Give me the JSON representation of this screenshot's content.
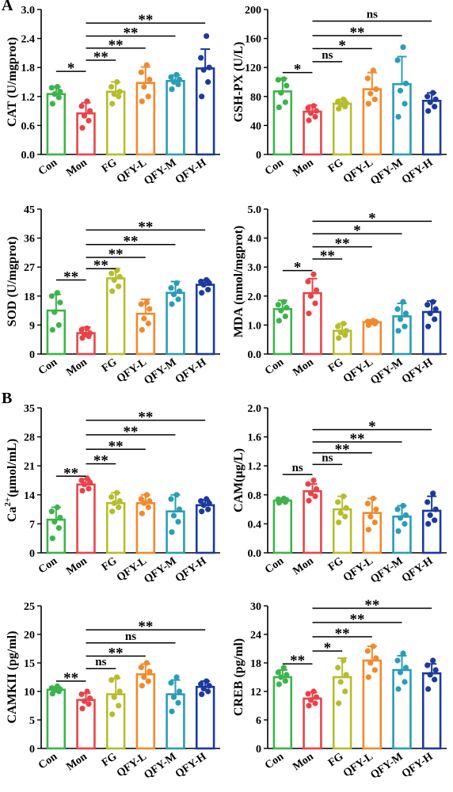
{
  "panel_labels": [
    "A",
    "B"
  ],
  "colors": [
    "#3cb44b",
    "#e8434a",
    "#b5bd2a",
    "#f08a2c",
    "#2a9db6",
    "#1a3a9c"
  ],
  "chart_data": [
    {
      "type": "bar",
      "ylabel": "CAT (U/mgprot)",
      "ylim": [
        0,
        3.0
      ],
      "yticks": [
        "0.0",
        "0.6",
        "1.2",
        "1.8",
        "2.4",
        "3.0"
      ],
      "categories": [
        "Con",
        "Mon",
        "FG",
        "QFY-L",
        "QFY-M",
        "QFY-H"
      ],
      "values": [
        1.25,
        0.85,
        1.3,
        1.48,
        1.52,
        1.78
      ],
      "errors": [
        0.15,
        0.22,
        0.2,
        0.33,
        0.12,
        0.4
      ],
      "points": [
        [
          1.05,
          1.18,
          1.25,
          1.3,
          1.38,
          1.4
        ],
        [
          0.55,
          0.7,
          0.8,
          0.9,
          1.0,
          1.1
        ],
        [
          1.05,
          1.2,
          1.25,
          1.3,
          1.4,
          1.5
        ],
        [
          1.1,
          1.2,
          1.4,
          1.55,
          1.7,
          1.85
        ],
        [
          1.35,
          1.45,
          1.5,
          1.55,
          1.6,
          1.65
        ],
        [
          1.2,
          1.5,
          1.75,
          1.8,
          2.0,
          2.45
        ]
      ],
      "comparisons": [
        {
          "from": 0,
          "to": 1,
          "label": "*",
          "level": 1.72
        },
        {
          "from": 1,
          "to": 2,
          "label": "**",
          "level": 1.95
        },
        {
          "from": 1,
          "to": 3,
          "label": "**",
          "level": 2.2
        },
        {
          "from": 1,
          "to": 4,
          "label": "**",
          "level": 2.45
        },
        {
          "from": 1,
          "to": 5,
          "label": "**",
          "level": 2.72
        }
      ]
    },
    {
      "type": "bar",
      "ylabel": "GSH-PX (U/L)",
      "ylim": [
        0,
        200
      ],
      "yticks": [
        "0",
        "40",
        "80",
        "120",
        "160",
        "200"
      ],
      "categories": [
        "Con",
        "Mon",
        "FG",
        "QFY-L",
        "QFY-M",
        "QFY-H"
      ],
      "values": [
        87,
        59,
        70,
        90,
        97,
        74
      ],
      "errors": [
        18,
        9,
        6,
        23,
        38,
        11
      ],
      "points": [
        [
          65,
          72,
          85,
          95,
          103,
          104
        ],
        [
          47,
          52,
          57,
          60,
          64,
          67
        ],
        [
          63,
          66,
          69,
          71,
          73,
          76
        ],
        [
          70,
          76,
          84,
          90,
          105,
          116
        ],
        [
          52,
          70,
          88,
          98,
          130,
          148
        ],
        [
          60,
          66,
          72,
          76,
          80,
          85
        ]
      ],
      "comparisons": [
        {
          "from": 0,
          "to": 1,
          "label": "*",
          "level": 113
        },
        {
          "from": 1,
          "to": 2,
          "label": "ns",
          "level": 128
        },
        {
          "from": 1,
          "to": 3,
          "label": "*",
          "level": 146
        },
        {
          "from": 1,
          "to": 4,
          "label": "**",
          "level": 164
        },
        {
          "from": 1,
          "to": 5,
          "label": "ns",
          "level": 184
        }
      ]
    },
    {
      "type": "bar",
      "ylabel": "SOD (U/mgprot)",
      "ylim": [
        0,
        45
      ],
      "yticks": [
        "0",
        "9",
        "18",
        "27",
        "36",
        "45"
      ],
      "categories": [
        "Con",
        "Mon",
        "FG",
        "QFY-L",
        "QFY-M",
        "QFY-H"
      ],
      "values": [
        13.5,
        6.5,
        23.5,
        12.5,
        19,
        21.5
      ],
      "errors": [
        5,
        1.8,
        3,
        4.5,
        3.5,
        1.5
      ],
      "points": [
        [
          7.5,
          9,
          13,
          16,
          18,
          19
        ],
        [
          5,
          5.5,
          6,
          6.5,
          7.5,
          8
        ],
        [
          19.5,
          21,
          23,
          24,
          25,
          26
        ],
        [
          7.5,
          9.5,
          11,
          14,
          15.5,
          16
        ],
        [
          15.5,
          17,
          18.5,
          19.5,
          20.5,
          22
        ],
        [
          19,
          20,
          21.5,
          22,
          22.5,
          23
        ]
      ],
      "comparisons": [
        {
          "from": 0,
          "to": 1,
          "label": "**",
          "level": 23
        },
        {
          "from": 1,
          "to": 2,
          "label": "**",
          "level": 26.5
        },
        {
          "from": 1,
          "to": 3,
          "label": "**",
          "level": 30
        },
        {
          "from": 1,
          "to": 4,
          "label": "**",
          "level": 34
        },
        {
          "from": 1,
          "to": 5,
          "label": "**",
          "level": 38.5
        }
      ]
    },
    {
      "type": "bar",
      "ylabel": "MDA (nmol/mgprot)",
      "ylim": [
        0,
        5.0
      ],
      "yticks": [
        "0.0",
        "1.0",
        "2.0",
        "3.0",
        "4.0",
        "5.0"
      ],
      "categories": [
        "Con",
        "Mon",
        "FG",
        "QFY-L",
        "QFY-M",
        "QFY-H"
      ],
      "values": [
        1.55,
        2.1,
        0.8,
        1.1,
        1.3,
        1.45
      ],
      "errors": [
        0.3,
        0.5,
        0.25,
        0.08,
        0.45,
        0.38
      ],
      "points": [
        [
          1.15,
          1.3,
          1.5,
          1.6,
          1.7,
          1.8
        ],
        [
          1.4,
          1.75,
          2.0,
          2.2,
          2.5,
          2.75
        ],
        [
          0.55,
          0.65,
          0.75,
          0.8,
          0.95,
          1.05
        ],
        [
          1.0,
          1.05,
          1.08,
          1.1,
          1.12,
          1.15
        ],
        [
          0.8,
          0.95,
          1.2,
          1.4,
          1.55,
          1.8
        ],
        [
          0.95,
          1.2,
          1.4,
          1.55,
          1.7,
          1.8
        ]
      ],
      "comparisons": [
        {
          "from": 0,
          "to": 1,
          "label": "*",
          "level": 2.88
        },
        {
          "from": 1,
          "to": 2,
          "label": "**",
          "level": 3.28
        },
        {
          "from": 1,
          "to": 3,
          "label": "**",
          "level": 3.7
        },
        {
          "from": 1,
          "to": 4,
          "label": "*",
          "level": 4.15
        },
        {
          "from": 1,
          "to": 5,
          "label": "*",
          "level": 4.58
        }
      ]
    },
    {
      "type": "bar",
      "ylabel_base": "Ca",
      "ylabel_sup": "2+",
      "ylabel_rest": "(μmol/mL)",
      "ylim": [
        0,
        35
      ],
      "yticks": [
        "0",
        "7",
        "14",
        "21",
        "28",
        "35"
      ],
      "categories": [
        "Con",
        "Mon",
        "FG",
        "QFY-L",
        "QFY-M",
        "QFY-H"
      ],
      "values": [
        8,
        16.5,
        12,
        12,
        10,
        11.5
      ],
      "errors": [
        3,
        1.3,
        2.5,
        2,
        4,
        1.3
      ],
      "points": [
        [
          3.5,
          6,
          7.5,
          8.5,
          10,
          11
        ],
        [
          15,
          15.5,
          16.5,
          17,
          17.5,
          18
        ],
        [
          10,
          11,
          12,
          12.5,
          13.5,
          14.5
        ],
        [
          9.5,
          11,
          12,
          12.5,
          13,
          14
        ],
        [
          5,
          7.5,
          9,
          10.5,
          13,
          14
        ],
        [
          10,
          10.5,
          11.5,
          12,
          12.5,
          13
        ]
      ],
      "comparisons": [
        {
          "from": 0,
          "to": 1,
          "label": "**",
          "level": 18.5
        },
        {
          "from": 1,
          "to": 2,
          "label": "**",
          "level": 21.5
        },
        {
          "from": 1,
          "to": 3,
          "label": "**",
          "level": 25
        },
        {
          "from": 1,
          "to": 4,
          "label": "**",
          "level": 28.5
        },
        {
          "from": 1,
          "to": 5,
          "label": "**",
          "level": 32
        }
      ]
    },
    {
      "type": "bar",
      "ylabel": "CAM(μg/L)",
      "ylim": [
        0,
        2.0
      ],
      "yticks": [
        "0.0",
        "0.4",
        "0.8",
        "1.2",
        "1.6",
        "2.0"
      ],
      "categories": [
        "Con",
        "Mon",
        "FG",
        "QFY-L",
        "QFY-M",
        "QFY-H"
      ],
      "values": [
        0.72,
        0.85,
        0.6,
        0.55,
        0.5,
        0.58
      ],
      "errors": [
        0.03,
        0.1,
        0.18,
        0.2,
        0.15,
        0.2
      ],
      "points": [
        [
          0.69,
          0.7,
          0.72,
          0.73,
          0.74,
          0.75
        ],
        [
          0.72,
          0.78,
          0.82,
          0.88,
          0.95,
          1.0
        ],
        [
          0.42,
          0.5,
          0.55,
          0.62,
          0.7,
          0.78
        ],
        [
          0.32,
          0.42,
          0.5,
          0.6,
          0.68,
          0.75
        ],
        [
          0.3,
          0.4,
          0.48,
          0.52,
          0.6,
          0.65
        ],
        [
          0.4,
          0.45,
          0.52,
          0.6,
          0.7,
          0.82
        ]
      ],
      "comparisons": [
        {
          "from": 0,
          "to": 1,
          "label": "ns",
          "level": 1.08
        },
        {
          "from": 1,
          "to": 2,
          "label": "ns",
          "level": 1.22
        },
        {
          "from": 1,
          "to": 3,
          "label": "**",
          "level": 1.38
        },
        {
          "from": 1,
          "to": 4,
          "label": "**",
          "level": 1.53
        },
        {
          "from": 1,
          "to": 5,
          "label": "*",
          "level": 1.7
        }
      ]
    },
    {
      "type": "bar",
      "ylabel": "CAMKII (pg/ml)",
      "ylim": [
        0,
        25
      ],
      "yticks": [
        "0",
        "5",
        "10",
        "15",
        "20",
        "25"
      ],
      "categories": [
        "Con",
        "Mon",
        "FG",
        "QFY-L",
        "QFY-M",
        "QFY-H"
      ],
      "values": [
        10.3,
        8.5,
        9.5,
        13,
        9.5,
        10.8
      ],
      "errors": [
        0.5,
        1.2,
        2.8,
        1.8,
        2.5,
        1
      ],
      "points": [
        [
          9.6,
          10,
          10.2,
          10.4,
          10.6,
          10.9
        ],
        [
          7,
          7.8,
          8.3,
          8.8,
          9.5,
          10
        ],
        [
          6,
          7.5,
          9,
          10,
          12,
          12.5
        ],
        [
          11,
          11.8,
          12.5,
          13.5,
          14.2,
          15
        ],
        [
          6.5,
          8,
          9,
          10,
          11.5,
          12.5
        ],
        [
          9.5,
          10,
          10.5,
          11,
          11.3,
          11.8
        ]
      ],
      "comparisons": [
        {
          "from": 0,
          "to": 1,
          "label": "**",
          "level": 11.8
        },
        {
          "from": 1,
          "to": 2,
          "label": "ns",
          "level": 14
        },
        {
          "from": 1,
          "to": 3,
          "label": "**",
          "level": 16.2
        },
        {
          "from": 1,
          "to": 4,
          "label": "ns",
          "level": 18.5
        },
        {
          "from": 1,
          "to": 5,
          "label": "**",
          "level": 20.8
        }
      ]
    },
    {
      "type": "bar",
      "ylabel": "CREB (pg/ml)",
      "ylim": [
        0,
        30
      ],
      "yticks": [
        "0",
        "6",
        "12",
        "18",
        "24",
        "30"
      ],
      "categories": [
        "Con",
        "Mon",
        "FG",
        "QFY-L",
        "QFY-M",
        "QFY-H"
      ],
      "values": [
        15,
        10.5,
        15,
        18.5,
        16.5,
        15.8
      ],
      "errors": [
        1.5,
        1.3,
        4,
        3,
        3,
        2
      ],
      "points": [
        [
          13.5,
          14.2,
          15,
          15.5,
          16,
          17
        ],
        [
          9,
          9.5,
          10.2,
          10.8,
          11.5,
          12
        ],
        [
          9.5,
          12,
          14,
          15.5,
          17,
          18.5
        ],
        [
          15,
          16.5,
          18,
          19,
          20.5,
          21.5
        ],
        [
          12.5,
          14,
          16,
          17,
          18.5,
          20
        ],
        [
          12.5,
          14.5,
          15.5,
          16.5,
          17.5,
          18.5
        ]
      ],
      "comparisons": [
        {
          "from": 0,
          "to": 1,
          "label": "**",
          "level": 17.8
        },
        {
          "from": 1,
          "to": 2,
          "label": "*",
          "level": 20.5
        },
        {
          "from": 1,
          "to": 3,
          "label": "**",
          "level": 23.5
        },
        {
          "from": 1,
          "to": 4,
          "label": "**",
          "level": 26.5
        },
        {
          "from": 1,
          "to": 5,
          "label": "**",
          "level": 29.5
        }
      ]
    }
  ]
}
